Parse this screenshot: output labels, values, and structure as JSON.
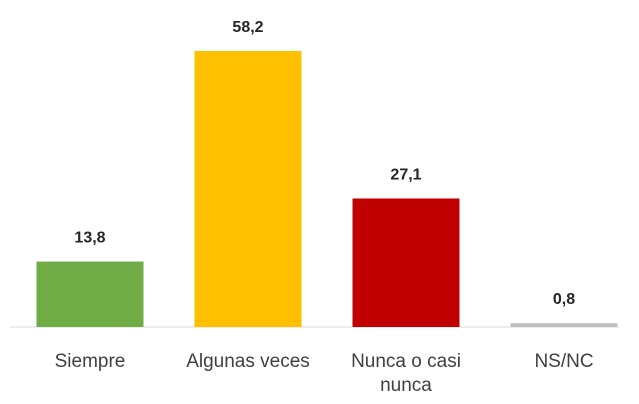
{
  "chart_data": {
    "type": "bar",
    "categories": [
      "Siempre",
      "Algunas veces",
      "Nunca o casi nunca",
      "NS/NC"
    ],
    "values": [
      13.8,
      58.2,
      27.1,
      0.8
    ],
    "value_labels": [
      "13,8",
      "58,2",
      "27,1",
      "0,8"
    ],
    "colors": [
      "#70ad47",
      "#ffc000",
      "#c00000",
      "#bfbfbf"
    ]
  }
}
